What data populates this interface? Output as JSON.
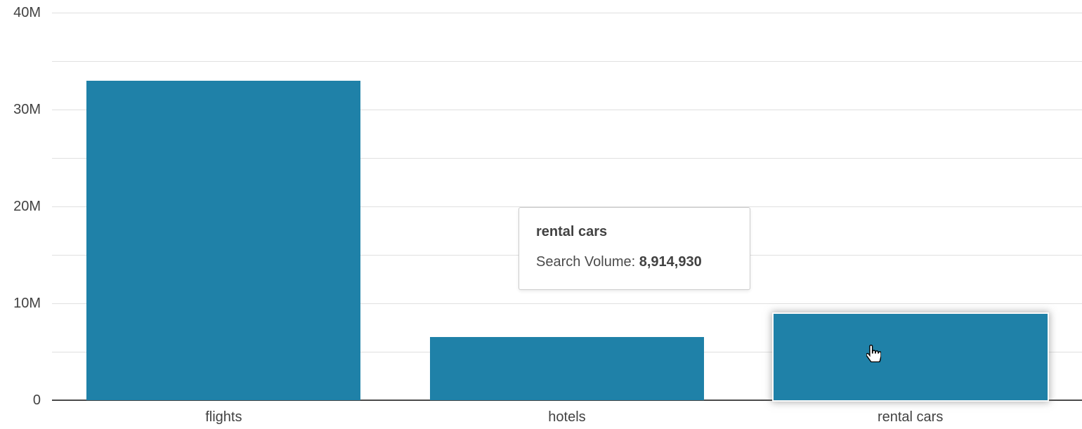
{
  "chart_data": {
    "type": "bar",
    "title": "",
    "xlabel": "",
    "ylabel": "",
    "categories": [
      "flights",
      "hotels",
      "rental cars"
    ],
    "series": [
      {
        "name": "Search Volume",
        "values": [
          33000000,
          6500000,
          8914930
        ]
      }
    ],
    "ylim": [
      0,
      40000000
    ],
    "yticks": [
      {
        "value": 0,
        "label": "0"
      },
      {
        "value": 5000000,
        "label": ""
      },
      {
        "value": 10000000,
        "label": "10M"
      },
      {
        "value": 15000000,
        "label": ""
      },
      {
        "value": 20000000,
        "label": "20M"
      },
      {
        "value": 25000000,
        "label": ""
      },
      {
        "value": 30000000,
        "label": "30M"
      },
      {
        "value": 35000000,
        "label": ""
      },
      {
        "value": 40000000,
        "label": "40M"
      }
    ],
    "grid": true,
    "legend": false,
    "hover_index": 2
  },
  "tooltip": {
    "title": "rental cars",
    "metric_label": "Search Volume: ",
    "metric_value": "8,914,930"
  },
  "colors": {
    "bar": "#1f81a8",
    "gridline": "#e0e0e0",
    "axis_line": "#4a4a4a",
    "label_text": "#424242"
  },
  "cursor": {
    "type": "hand-pointer"
  }
}
